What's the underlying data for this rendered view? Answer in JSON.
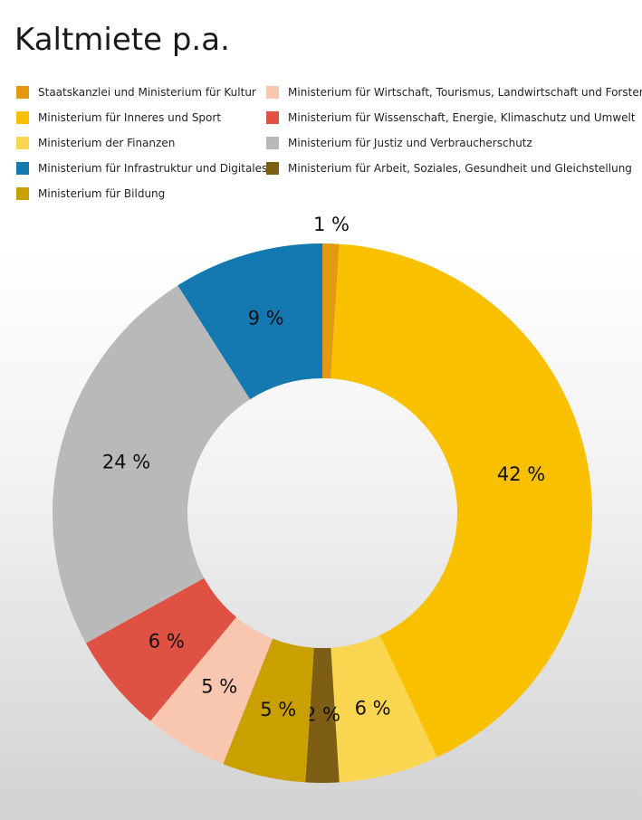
{
  "chart_data": {
    "type": "pie",
    "title": "Kaltmiete p.a.",
    "categories": [
      "Staatskanzlei und Ministerium für Kultur",
      "Ministerium für Inneres und Sport",
      "Ministerium der Finanzen",
      "Ministerium für Arbeit, Soziales, Gesundheit und Gleichstellung",
      "Ministerium für Bildung",
      "Ministerium für Wirtschaft, Tourismus, Landwirtschaft und Forsten",
      "Ministerium für Wissenschaft, Energie, Klimaschutz und Umwelt",
      "Ministerium für Justiz und Verbraucherschutz",
      "Ministerium für Infrastruktur und Digitales"
    ],
    "values": [
      1,
      42,
      6,
      2,
      5,
      5,
      6,
      24,
      9
    ],
    "labels": [
      "1 %",
      "42 %",
      "6 %",
      "2 %",
      "5 %",
      "5 %",
      "6 %",
      "24 %",
      "9 %"
    ],
    "colors": [
      "#E39A10",
      "#F9C000",
      "#FAD650",
      "#7E5E14",
      "#C9A000",
      "#F9C6B0",
      "#DE5143",
      "#B9B9B9",
      "#1479B0"
    ],
    "donut": true,
    "legend": [
      [
        {
          "label": "Staatskanzlei und Ministerium für Kultur",
          "color": "#E39A10"
        },
        {
          "label": "Ministerium für Inneres und Sport",
          "color": "#F9C000"
        },
        {
          "label": "Ministerium der Finanzen",
          "color": "#FAD650"
        },
        {
          "label": "Ministerium für Infrastruktur und Digitales",
          "color": "#1479B0"
        },
        {
          "label": "Ministerium für Bildung",
          "color": "#C9A000"
        }
      ],
      [
        {
          "label": "Ministerium für Wirtschaft, Tourismus, Landwirtschaft und Forsten",
          "color": "#F9C6B0"
        },
        {
          "label": "Ministerium für Wissenschaft, Energie, Klimaschutz und Umwelt",
          "color": "#DE5143"
        },
        {
          "label": "Ministerium für Justiz und Verbraucherschutz",
          "color": "#B9B9B9"
        },
        {
          "label": "Ministerium für Arbeit, Soziales, Gesundheit und Gleichstellung",
          "color": "#7E5E14"
        }
      ]
    ],
    "legend_position": "top"
  }
}
